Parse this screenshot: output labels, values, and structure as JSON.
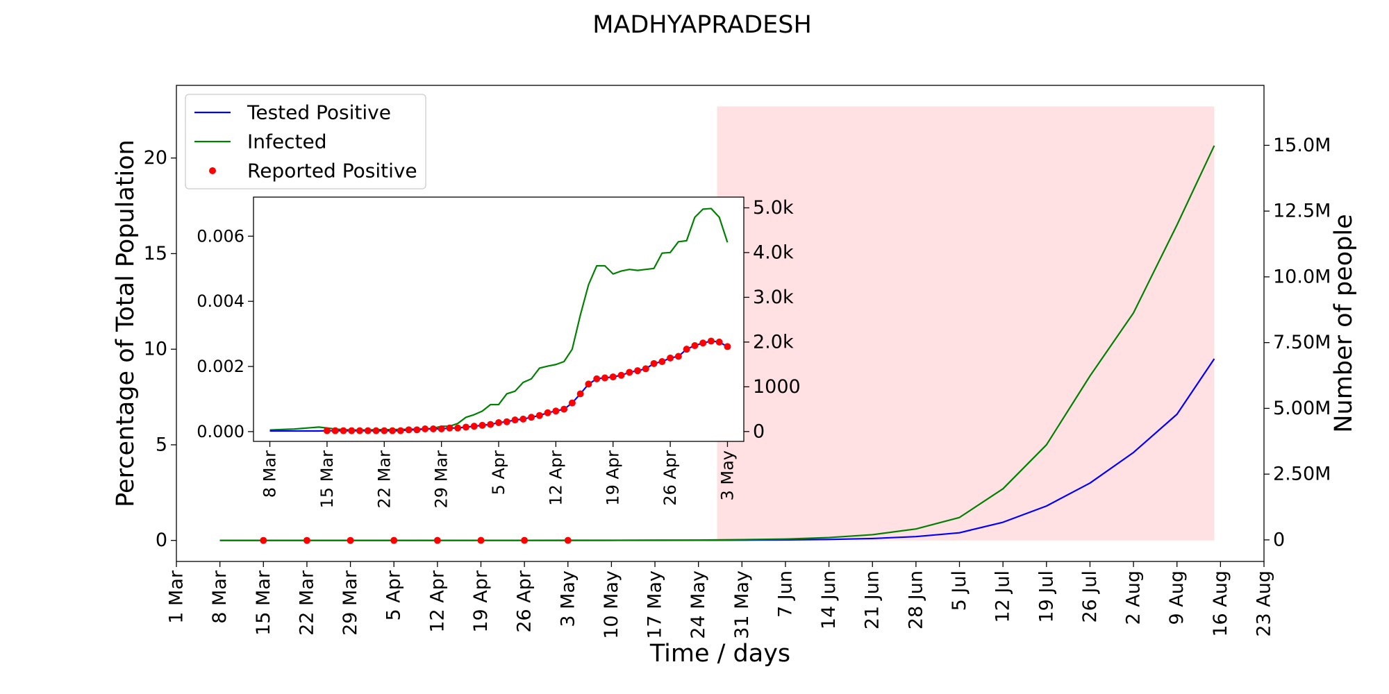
{
  "chart_data": [
    {
      "type": "line",
      "title": "MADHYAPRADESH",
      "xlabel": "Time / days",
      "ylabel": "Percentage of Total Population",
      "y2label": "Number of people",
      "x": [
        "8 Mar",
        "15 Mar",
        "22 Mar",
        "29 Mar",
        "5 Apr",
        "12 Apr",
        "19 Apr",
        "26 Apr",
        "3 May",
        "10 May",
        "17 May",
        "24 May",
        "31 May",
        "7 Jun",
        "14 Jun",
        "21 Jun",
        "28 Jun",
        "5 Jul",
        "12 Jul",
        "19 Jul",
        "26 Jul",
        "2 Aug",
        "9 Aug",
        "15 Aug"
      ],
      "xlim": [
        "1 Mar",
        "23 Aug"
      ],
      "xticks": [
        "1 Mar",
        "8 Mar",
        "15 Mar",
        "22 Mar",
        "29 Mar",
        "5 Apr",
        "12 Apr",
        "19 Apr",
        "26 Apr",
        "3 May",
        "10 May",
        "17 May",
        "24 May",
        "31 May",
        "7 Jun",
        "14 Jun",
        "21 Jun",
        "28 Jun",
        "5 Jul",
        "12 Jul",
        "19 Jul",
        "26 Jul",
        "2 Aug",
        "9 Aug",
        "16 Aug",
        "23 Aug"
      ],
      "ylim": [
        -1.1,
        23.8
      ],
      "yticks": [
        0,
        5,
        10,
        15,
        20
      ],
      "y2lim": [
        -820000,
        17280000
      ],
      "y2ticks": [
        0,
        {
          "value": 2500000,
          "label": "2.50M"
        },
        {
          "value": 5000000,
          "label": "5.00M"
        },
        {
          "value": 7500000,
          "label": "7.50M"
        },
        {
          "value": 10000000,
          "label": "10.0M"
        },
        {
          "value": 12500000,
          "label": "12.5M"
        },
        {
          "value": 15000000,
          "label": "15.0M"
        }
      ],
      "legend": "upper left",
      "shade": {
        "from": "27 May",
        "to": "15 Aug",
        "top": 22.7,
        "color": "#ffe0e3"
      },
      "series": [
        {
          "name": "Tested Positive",
          "type": "line",
          "color": "#0000ff",
          "values": [
            2e-05,
            2.8e-05,
            2.8e-05,
            8.3e-05,
            0.000275,
            0.000633,
            0.00168,
            0.00226,
            0.00261,
            0.004,
            0.006,
            0.009,
            0.015,
            0.03,
            0.05,
            0.1,
            0.2,
            0.4,
            0.95,
            1.8,
            3.0,
            4.6,
            6.6,
            9.5
          ]
        },
        {
          "name": "Infected",
          "type": "line",
          "color": "#008000",
          "values": [
            5e-05,
            8e-05,
            8e-05,
            0.000165,
            0.00083,
            0.00206,
            0.00484,
            0.00548,
            0.00581,
            0.008,
            0.012,
            0.018,
            0.04,
            0.07,
            0.15,
            0.3,
            0.6,
            1.2,
            2.7,
            5.0,
            8.6,
            11.9,
            16.5,
            20.65
          ]
        },
        {
          "name": "Reported Positive",
          "type": "scatter",
          "color": "#ff0000",
          "values": [
            null,
            2.8e-05,
            2.8e-05,
            8.3e-05,
            0.000275,
            0.000633,
            0.00168,
            0.00226,
            0.00261,
            null,
            null,
            null,
            null,
            null,
            null,
            null,
            null,
            null,
            null,
            null,
            null,
            null,
            null,
            null
          ]
        }
      ]
    },
    {
      "type": "line",
      "x": [
        "8 Mar",
        "9 Mar",
        "10 Mar",
        "11 Mar",
        "12 Mar",
        "13 Mar",
        "14 Mar",
        "15 Mar",
        "16 Mar",
        "17 Mar",
        "18 Mar",
        "19 Mar",
        "20 Mar",
        "21 Mar",
        "22 Mar",
        "23 Mar",
        "24 Mar",
        "25 Mar",
        "26 Mar",
        "27 Mar",
        "28 Mar",
        "29 Mar",
        "30 Mar",
        "31 Mar",
        "1 Apr",
        "2 Apr",
        "3 Apr",
        "4 Apr",
        "5 Apr",
        "6 Apr",
        "7 Apr",
        "8 Apr",
        "9 Apr",
        "10 Apr",
        "11 Apr",
        "12 Apr",
        "13 Apr",
        "14 Apr",
        "15 Apr",
        "16 Apr",
        "17 Apr",
        "18 Apr",
        "19 Apr",
        "20 Apr",
        "21 Apr",
        "22 Apr",
        "23 Apr",
        "24 Apr",
        "25 Apr",
        "26 Apr",
        "27 Apr",
        "28 Apr",
        "29 Apr",
        "30 Apr",
        "1 May",
        "2 May",
        "3 May"
      ],
      "xlim": [
        "6 Mar",
        "5 May"
      ],
      "xticks": [
        "8 Mar",
        "15 Mar",
        "22 Mar",
        "29 Mar",
        "5 Apr",
        "12 Apr",
        "19 Apr",
        "26 Apr",
        "3 May"
      ],
      "ylim": [
        -0.0003,
        0.0072
      ],
      "yticks": [
        {
          "value": 0,
          "label": "0.000"
        },
        {
          "value": 0.002,
          "label": "0.002"
        },
        {
          "value": 0.004,
          "label": "0.004"
        },
        {
          "value": 0.006,
          "label": "0.006"
        }
      ],
      "y2lim": [
        -220,
        5240
      ],
      "y2ticks": [
        0,
        1000,
        {
          "value": 2000,
          "label": "2.0k"
        },
        {
          "value": 3000,
          "label": "3.0k"
        },
        {
          "value": 4000,
          "label": "4.0k"
        },
        {
          "value": 5000,
          "label": "5.0k"
        }
      ],
      "series": [
        {
          "type": "line",
          "color": "#008000",
          "values": [
            5e-05,
            6e-05,
            7e-05,
            8e-05,
            0.0001,
            0.00012,
            0.00014,
            0.00011,
            8e-05,
            6e-05,
            5e-05,
            5e-05,
            5e-05,
            6e-05,
            6e-05,
            6e-05,
            7e-05,
            7e-05,
            8e-05,
            8e-05,
            0.0001,
            0.000165,
            0.000165,
            0.00025,
            0.00044,
            0.00052,
            0.00063,
            0.00083,
            0.00083,
            0.00116,
            0.00124,
            0.00151,
            0.00162,
            0.00195,
            0.00201,
            0.00206,
            0.00215,
            0.00253,
            0.00358,
            0.00451,
            0.00509,
            0.00509,
            0.00484,
            0.00493,
            0.00498,
            0.00495,
            0.00498,
            0.00501,
            0.00548,
            0.0055,
            0.00583,
            0.00586,
            0.00658,
            0.00683,
            0.00685,
            0.00658,
            0.00581
          ]
        },
        {
          "type": "line",
          "color": "#0000ff",
          "values": [
            2e-05,
            2e-05,
            2e-05,
            2e-05,
            2e-05,
            2e-05,
            2e-05,
            2.8e-05,
            2.8e-05,
            2.8e-05,
            2.8e-05,
            2.8e-05,
            2.8e-05,
            2.8e-05,
            2.8e-05,
            2.8e-05,
            2.8e-05,
            5.5e-05,
            5.5e-05,
            8.3e-05,
            8.3e-05,
            8.3e-05,
            0.00011,
            0.00011,
            0.000138,
            0.000165,
            0.000193,
            0.00022,
            0.000275,
            0.000303,
            0.000358,
            0.000385,
            0.00044,
            0.000495,
            0.000578,
            0.000633,
            0.000688,
            0.000881,
            0.00116,
            0.00146,
            0.00162,
            0.00165,
            0.00168,
            0.00173,
            0.00182,
            0.00187,
            0.00193,
            0.00209,
            0.00215,
            0.00226,
            0.00231,
            0.00253,
            0.00264,
            0.00272,
            0.00278,
            0.00275,
            0.00261
          ]
        },
        {
          "type": "scatter",
          "color": "#ff0000",
          "values": [
            null,
            null,
            null,
            null,
            null,
            null,
            null,
            2.8e-05,
            2.8e-05,
            2.8e-05,
            2.8e-05,
            2.8e-05,
            2.8e-05,
            2.8e-05,
            2.8e-05,
            2.8e-05,
            2.8e-05,
            5.5e-05,
            5.5e-05,
            8.3e-05,
            8.3e-05,
            8.3e-05,
            0.00011,
            0.00011,
            0.000138,
            0.000165,
            0.000193,
            0.00022,
            0.000275,
            0.000303,
            0.000358,
            0.000385,
            0.00044,
            0.000495,
            0.000578,
            0.000633,
            0.000688,
            0.000881,
            0.00116,
            0.00146,
            0.00162,
            0.00165,
            0.00168,
            0.00173,
            0.00182,
            0.00187,
            0.00193,
            0.00209,
            0.00215,
            0.00226,
            0.00231,
            0.00253,
            0.00264,
            0.00272,
            0.00278,
            0.00275,
            0.00261
          ]
        }
      ]
    }
  ]
}
